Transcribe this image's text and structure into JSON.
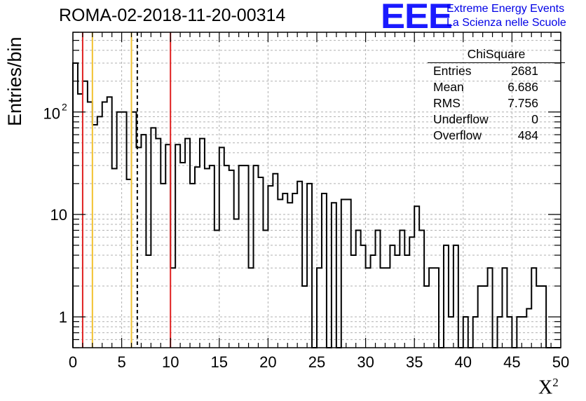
{
  "header": {
    "title": "ROMA-02-2018-11-20-00314"
  },
  "logo": {
    "mark": "EEE",
    "line1": "Extreme Energy Events",
    "line2": "La Scienza nelle Scuole",
    "color": "#1a1aff"
  },
  "stats_box": {
    "name": "ChiSquare",
    "rows": [
      {
        "label": "Entries",
        "value": "2681"
      },
      {
        "label": "Mean",
        "value": "6.686"
      },
      {
        "label": "RMS",
        "value": "7.756"
      },
      {
        "label": "Underflow",
        "value": "0"
      },
      {
        "label": "Overflow",
        "value": "484"
      }
    ]
  },
  "chart_data": {
    "type": "histogram",
    "xlabel": "X",
    "xlabel_sup": "2",
    "ylabel": "Entries/bin",
    "xlim": [
      0,
      50
    ],
    "ylim": [
      0.5,
      600
    ],
    "yscale": "log",
    "grid": true,
    "bin_width": 0.5,
    "xticks": [
      0,
      5,
      10,
      15,
      20,
      25,
      30,
      35,
      40,
      45,
      50
    ],
    "xtick_labels": [
      "0",
      "5",
      "10",
      "15",
      "20",
      "25",
      "30",
      "35",
      "40",
      "45",
      "50"
    ],
    "ytick_values": [
      1,
      10,
      100
    ],
    "ytick_labels": [
      "1",
      "10",
      "10",
      "2"
    ],
    "counts": [
      300,
      150,
      200,
      125,
      75,
      90,
      125,
      140,
      28,
      100,
      100,
      22,
      100,
      45,
      60,
      4,
      70,
      55,
      20,
      48,
      3,
      48,
      32,
      55,
      20,
      29,
      55,
      28,
      30,
      7,
      45,
      30,
      27,
      9,
      30,
      30,
      3,
      30,
      23,
      7,
      19,
      25,
      14,
      16,
      13,
      16,
      21,
      2,
      20,
      0.5,
      3,
      16,
      0.5,
      13,
      0.5,
      14,
      14,
      4,
      7,
      5,
      3,
      4,
      7,
      3,
      3,
      5,
      4,
      7,
      4,
      6,
      12,
      7,
      2,
      3,
      3,
      0.5,
      5,
      1,
      5,
      0.5,
      1,
      0.5,
      1,
      2,
      2,
      3,
      0.5,
      1,
      3,
      1,
      0.5,
      1,
      1,
      1.2,
      3,
      2,
      2,
      0.5,
      0.5,
      0.5,
      0.5
    ],
    "vertical_lines": [
      {
        "x": 1,
        "color": "#e02020",
        "style": "solid"
      },
      {
        "x": 2,
        "color": "#f2c230",
        "style": "solid"
      },
      {
        "x": 6,
        "color": "#f2c230",
        "style": "solid"
      },
      {
        "x": 6.6,
        "color": "#000000",
        "style": "dashed"
      },
      {
        "x": 10,
        "color": "#e02020",
        "style": "solid"
      }
    ]
  }
}
